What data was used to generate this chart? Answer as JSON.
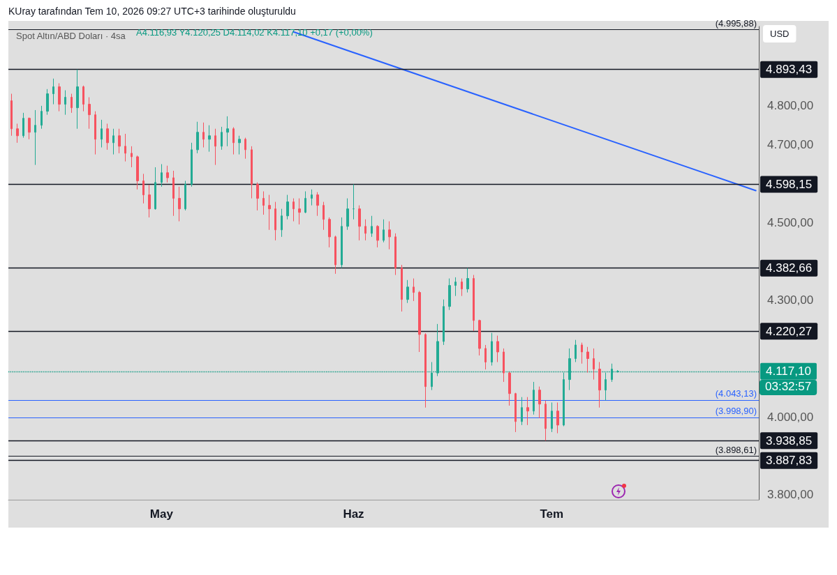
{
  "chart_data": {
    "type": "candlestick",
    "title": "Spot Altın/ABD Doları · 4sa",
    "annotations": [
      "KUray tarafından Tem 10, 2026 09:27 UTC+3 tarihinde oluşturuldu",
      "A4.116,93 Y4.120,25 D4.114,02 K4.117,10 +0,17 (+0,00%)",
      "USD",
      "03:32:57"
    ],
    "categories": [
      null,
      null,
      null,
      null,
      null,
      null,
      null,
      null,
      null,
      null,
      null,
      null,
      null,
      null,
      null,
      null,
      null,
      null,
      null,
      null,
      null,
      null,
      null,
      null,
      null,
      "May",
      null,
      null,
      null,
      null,
      null,
      null,
      null,
      null,
      null,
      null,
      null,
      null,
      null,
      null,
      null,
      null,
      null,
      null,
      null,
      null,
      null,
      null,
      null,
      null,
      null,
      null,
      null,
      null,
      null,
      null,
      null,
      "Haz",
      null,
      null,
      null,
      null,
      null,
      null,
      null,
      null,
      null,
      null,
      null,
      null,
      null,
      null,
      null,
      null,
      null,
      null,
      null,
      null,
      null,
      null,
      null,
      null,
      null,
      null,
      null,
      null,
      null,
      null,
      null,
      null,
      "Tem",
      null,
      null,
      null,
      null,
      null,
      null,
      null,
      null,
      null,
      null,
      null,
      null,
      null,
      null,
      null,
      null,
      null,
      null,
      null,
      null,
      null,
      null,
      null,
      null,
      null,
      null,
      null,
      null,
      null,
      null,
      null,
      null,
      null,
      null
    ],
    "ohlc": [
      [
        4813,
        4831,
        4723,
        4741
      ],
      [
        4741,
        4754,
        4705,
        4723
      ],
      [
        4723,
        4782,
        4718,
        4768
      ],
      [
        4768,
        4770,
        4714,
        4732
      ],
      [
        4732,
        4789,
        4648,
        4750
      ],
      [
        4750,
        4800,
        4741,
        4786
      ],
      [
        4786,
        4843,
        4777,
        4831
      ],
      [
        4831,
        4870,
        4804,
        4849
      ],
      [
        4849,
        4858,
        4786,
        4804
      ],
      [
        4804,
        4840,
        4777,
        4822
      ],
      [
        4822,
        4831,
        4782,
        4795
      ],
      [
        4795,
        4893.43,
        4741,
        4849
      ],
      [
        4849,
        4852,
        4786,
        4804
      ],
      [
        4804,
        4822,
        4741,
        4777
      ],
      [
        4777,
        4786,
        4675,
        4714
      ],
      [
        4714,
        4764,
        4693,
        4741
      ],
      [
        4741,
        4754,
        4687,
        4705
      ],
      [
        4705,
        4741,
        4675,
        4723
      ],
      [
        4723,
        4741,
        4678,
        4696
      ],
      [
        4696,
        4728,
        4657,
        4678
      ],
      [
        4678,
        4696,
        4642,
        4669
      ],
      [
        4669,
        4672,
        4585,
        4607
      ],
      [
        4607,
        4625,
        4549,
        4571
      ],
      [
        4571,
        4597,
        4513,
        4535
      ],
      [
        4535,
        4642,
        4533,
        4603
      ],
      [
        4603,
        4650,
        4592,
        4628
      ],
      [
        4628,
        4646,
        4603,
        4615
      ],
      [
        4615,
        4633,
        4517,
        4562
      ],
      [
        4562,
        4592,
        4503,
        4535
      ],
      [
        4535,
        4607,
        4531,
        4598
      ],
      [
        4598,
        4705,
        4592,
        4687
      ],
      [
        4687,
        4759,
        4678,
        4732
      ],
      [
        4732,
        4757,
        4693,
        4714
      ],
      [
        4714,
        4750,
        4682,
        4723
      ],
      [
        4723,
        4741,
        4648,
        4696
      ],
      [
        4696,
        4746,
        4687,
        4732
      ],
      [
        4732,
        4773,
        4696,
        4741
      ],
      [
        4741,
        4745,
        4675,
        4705
      ],
      [
        4705,
        4723,
        4675,
        4714
      ],
      [
        4714,
        4718,
        4664,
        4687
      ],
      [
        4687,
        4696,
        4562,
        4598
      ],
      [
        4598,
        4603,
        4531,
        4562
      ],
      [
        4562,
        4580,
        4520,
        4544
      ],
      [
        4544,
        4571,
        4481,
        4535
      ],
      [
        4535,
        4553,
        4454,
        4481
      ],
      [
        4481,
        4535,
        4463,
        4517
      ],
      [
        4517,
        4571,
        4508,
        4553
      ],
      [
        4553,
        4562,
        4503,
        4535
      ],
      [
        4535,
        4562,
        4495,
        4526
      ],
      [
        4526,
        4580,
        4524,
        4562
      ],
      [
        4562,
        4585,
        4544,
        4571
      ],
      [
        4571,
        4578,
        4517,
        4544
      ],
      [
        4544,
        4553,
        4481,
        4508
      ],
      [
        4508,
        4513,
        4436,
        4463
      ],
      [
        4463,
        4466,
        4368,
        4391
      ],
      [
        4391,
        4513,
        4383,
        4490
      ],
      [
        4490,
        4562,
        4481,
        4535
      ],
      [
        4535,
        4598.15,
        4508,
        4535
      ],
      [
        4535,
        4544,
        4454,
        4490
      ],
      [
        4490,
        4508,
        4454,
        4472
      ],
      [
        4472,
        4517,
        4463,
        4490
      ],
      [
        4490,
        4493,
        4436,
        4454
      ],
      [
        4454,
        4508,
        4449,
        4481
      ],
      [
        4481,
        4503,
        4431,
        4463
      ],
      [
        4463,
        4472,
        4365,
        4383
      ],
      [
        4383,
        4391,
        4271,
        4302
      ],
      [
        4302,
        4352,
        4293,
        4334
      ],
      [
        4334,
        4356,
        4298,
        4320
      ],
      [
        4320,
        4324,
        4167,
        4212
      ],
      [
        4212,
        4215,
        4024,
        4078
      ],
      [
        4078,
        4141,
        4069,
        4113
      ],
      [
        4113,
        4239,
        4105,
        4194
      ],
      [
        4194,
        4302,
        4185,
        4284
      ],
      [
        4284,
        4356,
        4275,
        4338
      ],
      [
        4338,
        4359,
        4311,
        4347
      ],
      [
        4347,
        4356,
        4311,
        4329
      ],
      [
        4329,
        4382.66,
        4320,
        4356
      ],
      [
        4356,
        4365,
        4221,
        4248
      ],
      [
        4248,
        4250,
        4158,
        4176
      ],
      [
        4176,
        4185,
        4122,
        4141
      ],
      [
        4141,
        4216,
        4132,
        4194
      ],
      [
        4194,
        4209,
        4141,
        4167
      ],
      [
        4167,
        4176,
        4090,
        4113
      ],
      [
        4113,
        4116,
        4029,
        4060
      ],
      [
        4060,
        4062,
        3961,
        3988
      ],
      [
        3988,
        4051,
        3979,
        4024
      ],
      [
        4024,
        4051,
        3979,
        4015
      ],
      [
        4015,
        4090,
        4006,
        4069
      ],
      [
        4069,
        4078,
        3997,
        4033
      ],
      [
        4033,
        4042,
        3938.85,
        3970
      ],
      [
        3970,
        4037,
        3961,
        4015
      ],
      [
        4015,
        4037,
        3958,
        3979
      ],
      [
        3979,
        4114,
        3976,
        4096
      ],
      [
        4096,
        4176,
        4069,
        4150
      ],
      [
        4150,
        4198,
        4141,
        4185
      ],
      [
        4185,
        4191,
        4137,
        4167
      ],
      [
        4167,
        4180,
        4114,
        4150
      ],
      [
        4150,
        4176,
        4096,
        4123
      ],
      [
        4123,
        4141,
        4024,
        4069
      ],
      [
        4069,
        4114,
        4042,
        4096
      ],
      [
        4096,
        4137,
        4090,
        4123
      ],
      [
        4116.93,
        4120.25,
        4114.02,
        4117.1
      ],
      null,
      null,
      null,
      null,
      null,
      null,
      null,
      null,
      null,
      null,
      null,
      null,
      null,
      null,
      null,
      null,
      null,
      null,
      null,
      null,
      null,
      null,
      null
    ],
    "series": [
      {
        "type": "line",
        "color": "#2962ff",
        "values": [
          null,
          null,
          null,
          null,
          null,
          null,
          null,
          null,
          null,
          null,
          null,
          null,
          null,
          null,
          null,
          null,
          null,
          null,
          null,
          null,
          null,
          null,
          null,
          null,
          null,
          null,
          null,
          null,
          null,
          null,
          null,
          null,
          null,
          null,
          null,
          null,
          null,
          null,
          null,
          null,
          null,
          null,
          null,
          null,
          null,
          null,
          null,
          4990,
          null,
          null,
          null,
          null,
          null,
          null,
          null,
          null,
          null,
          null,
          null,
          null,
          null,
          null,
          null,
          null,
          null,
          null,
          null,
          null,
          null,
          null,
          null,
          null,
          null,
          null,
          null,
          null,
          null,
          null,
          null,
          null,
          null,
          null,
          null,
          null,
          null,
          null,
          null,
          null,
          null,
          null,
          null,
          null,
          null,
          null,
          null,
          null,
          null,
          null,
          null,
          null,
          null,
          null,
          null,
          null,
          null,
          null,
          null,
          null,
          null,
          null,
          null,
          null,
          null,
          null,
          null,
          null,
          null,
          null,
          null,
          null,
          null,
          null,
          null,
          null,
          4582
        ]
      }
    ],
    "ylim": [
      3787,
      5004
    ],
    "yticks": [
      {
        "value": 3800,
        "label": "3.800,00"
      },
      {
        "value": 4000,
        "label": "4.000,00"
      },
      {
        "value": 4300,
        "label": "4.300,00"
      },
      {
        "value": 4500,
        "label": "4.500,00"
      },
      {
        "value": 4700,
        "label": "4.700,00"
      },
      {
        "value": 4800,
        "label": "4.800,00"
      }
    ],
    "ref_lines": [
      {
        "axis": "y",
        "value": 4995.88,
        "label": "(4.995,88)",
        "color": "#131722"
      },
      {
        "axis": "y",
        "value": 4893.43,
        "label": "4.893,43"
      },
      {
        "axis": "y",
        "value": 4598.15,
        "label": "4.598,15"
      },
      {
        "axis": "y",
        "value": 4382.66,
        "label": "4.382,66"
      },
      {
        "axis": "y",
        "value": 4220.27,
        "label": "4.220,27"
      },
      {
        "axis": "y",
        "value": 4117.1,
        "label": "4.117,10",
        "color": "#089981",
        "line_style": "dotted"
      },
      {
        "axis": "y",
        "value": 4043.13,
        "label": "(4.043,13)",
        "color": "#2962ff"
      },
      {
        "axis": "y",
        "value": 3998.9,
        "label": "(3.998,90)",
        "color": "#2962ff"
      },
      {
        "axis": "y",
        "value": 3938.85,
        "label": "3.938,85"
      },
      {
        "axis": "y",
        "value": 3898.61,
        "label": "(3.898,61)",
        "color": "#131722"
      },
      {
        "axis": "y",
        "value": 3887.83,
        "label": "3.887,83"
      }
    ],
    "marker": "none"
  }
}
